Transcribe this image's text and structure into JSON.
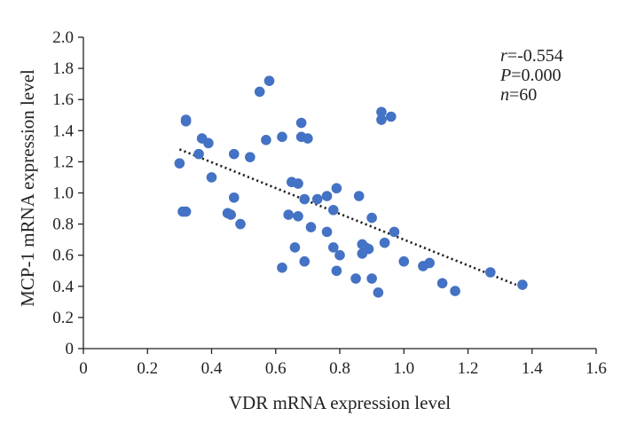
{
  "chart_data": {
    "type": "scatter",
    "xlabel": "VDR mRNA expression level",
    "ylabel": "MCP-1 mRNA expression level",
    "xlim": [
      0,
      1.6
    ],
    "ylim": [
      0,
      2.0
    ],
    "x_ticks": [
      "0",
      "0.2",
      "0.4",
      "0.6",
      "0.8",
      "1.0",
      "1.2",
      "1.4",
      "1.6"
    ],
    "y_ticks": [
      "0",
      "0.2",
      "0.4",
      "0.6",
      "0.8",
      "1.0",
      "1.2",
      "1.4",
      "1.6",
      "1.8",
      "2.0"
    ],
    "grid": false,
    "point_color": "#4472C4",
    "trendline": {
      "style": "dotted",
      "x": [
        0.3,
        1.35
      ],
      "y": [
        1.28,
        0.41
      ]
    },
    "annotations": [
      {
        "name": "r",
        "label": "r",
        "value": "=-0.554"
      },
      {
        "name": "p",
        "label": "P",
        "value": "=0.000"
      },
      {
        "name": "n",
        "label": "n",
        "value": "=60"
      }
    ],
    "points": [
      {
        "x": 0.3,
        "y": 1.19
      },
      {
        "x": 0.31,
        "y": 0.88
      },
      {
        "x": 0.32,
        "y": 0.88
      },
      {
        "x": 0.32,
        "y": 1.47
      },
      {
        "x": 0.32,
        "y": 1.46
      },
      {
        "x": 0.36,
        "y": 1.25
      },
      {
        "x": 0.37,
        "y": 1.35
      },
      {
        "x": 0.39,
        "y": 1.32
      },
      {
        "x": 0.4,
        "y": 1.1
      },
      {
        "x": 0.45,
        "y": 0.87
      },
      {
        "x": 0.46,
        "y": 0.86
      },
      {
        "x": 0.47,
        "y": 0.97
      },
      {
        "x": 0.47,
        "y": 1.25
      },
      {
        "x": 0.49,
        "y": 0.8
      },
      {
        "x": 0.52,
        "y": 1.23
      },
      {
        "x": 0.55,
        "y": 1.65
      },
      {
        "x": 0.57,
        "y": 1.34
      },
      {
        "x": 0.58,
        "y": 1.72
      },
      {
        "x": 0.62,
        "y": 1.36
      },
      {
        "x": 0.62,
        "y": 0.52
      },
      {
        "x": 0.64,
        "y": 0.86
      },
      {
        "x": 0.65,
        "y": 1.07
      },
      {
        "x": 0.66,
        "y": 0.65
      },
      {
        "x": 0.67,
        "y": 1.06
      },
      {
        "x": 0.67,
        "y": 0.85
      },
      {
        "x": 0.68,
        "y": 1.45
      },
      {
        "x": 0.68,
        "y": 1.36
      },
      {
        "x": 0.69,
        "y": 0.96
      },
      {
        "x": 0.69,
        "y": 0.56
      },
      {
        "x": 0.7,
        "y": 1.35
      },
      {
        "x": 0.71,
        "y": 0.78
      },
      {
        "x": 0.73,
        "y": 0.96
      },
      {
        "x": 0.76,
        "y": 0.98
      },
      {
        "x": 0.76,
        "y": 0.75
      },
      {
        "x": 0.78,
        "y": 0.65
      },
      {
        "x": 0.78,
        "y": 0.89
      },
      {
        "x": 0.79,
        "y": 1.03
      },
      {
        "x": 0.79,
        "y": 0.5
      },
      {
        "x": 0.8,
        "y": 0.6
      },
      {
        "x": 0.85,
        "y": 0.45
      },
      {
        "x": 0.86,
        "y": 0.98
      },
      {
        "x": 0.87,
        "y": 0.61
      },
      {
        "x": 0.87,
        "y": 0.67
      },
      {
        "x": 0.88,
        "y": 0.65
      },
      {
        "x": 0.89,
        "y": 0.64
      },
      {
        "x": 0.9,
        "y": 0.45
      },
      {
        "x": 0.9,
        "y": 0.84
      },
      {
        "x": 0.92,
        "y": 0.36
      },
      {
        "x": 0.93,
        "y": 1.52
      },
      {
        "x": 0.93,
        "y": 1.47
      },
      {
        "x": 0.94,
        "y": 0.68
      },
      {
        "x": 0.96,
        "y": 1.49
      },
      {
        "x": 0.97,
        "y": 0.75
      },
      {
        "x": 1.0,
        "y": 0.56
      },
      {
        "x": 1.06,
        "y": 0.53
      },
      {
        "x": 1.08,
        "y": 0.55
      },
      {
        "x": 1.12,
        "y": 0.42
      },
      {
        "x": 1.16,
        "y": 0.37
      },
      {
        "x": 1.27,
        "y": 0.49
      },
      {
        "x": 1.37,
        "y": 0.41
      }
    ]
  }
}
